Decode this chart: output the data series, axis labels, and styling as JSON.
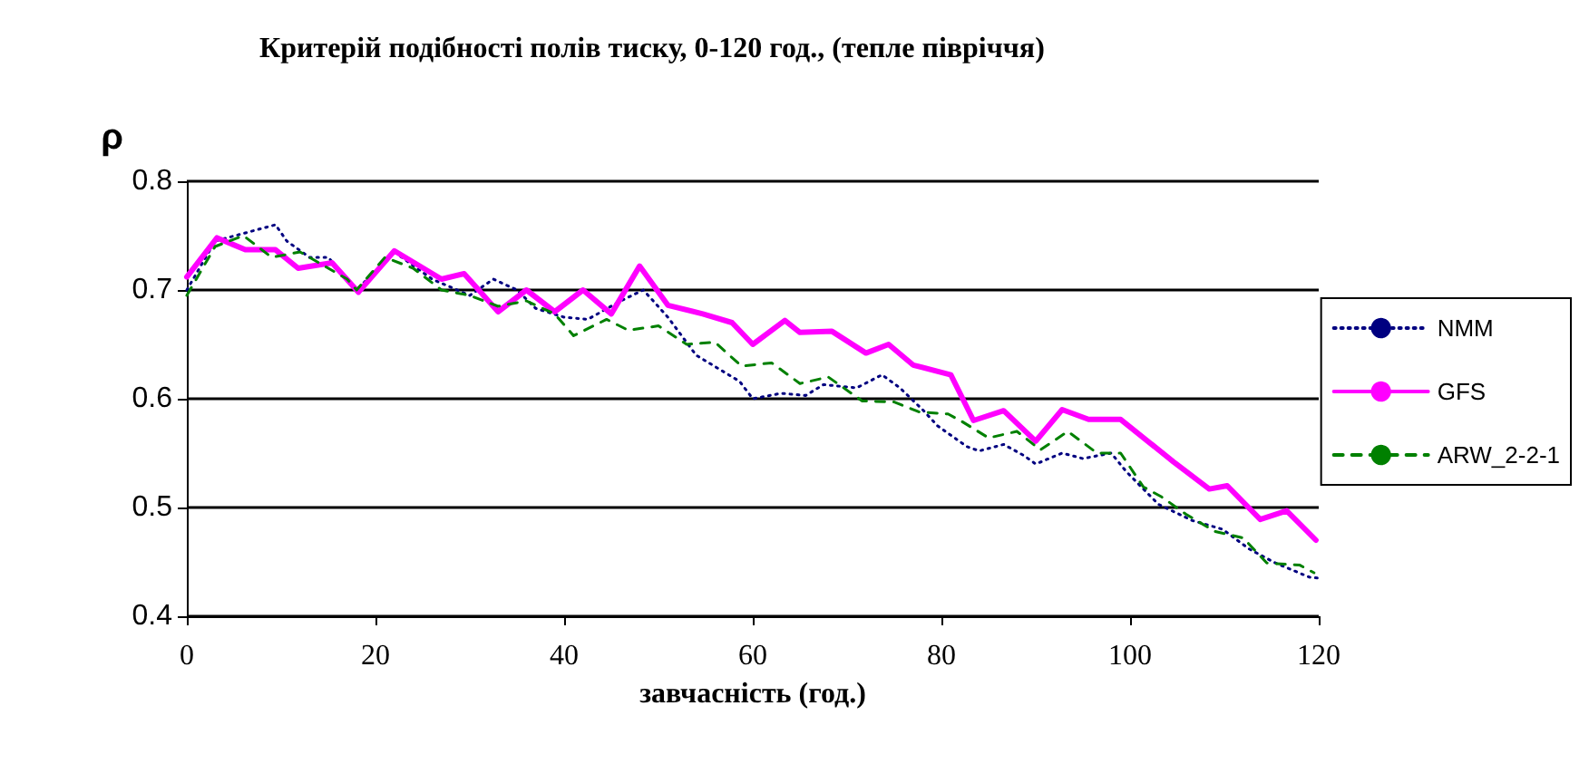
{
  "chart_data": {
    "type": "line",
    "title": "Критерій подібності полів тиску, 0-120 год., (тепле півріччя)",
    "ylabel": "ρ",
    "xlabel": "завчасність (год.)",
    "xlim": [
      0,
      120
    ],
    "xticks": [
      0,
      20,
      40,
      60,
      80,
      100,
      120
    ],
    "ylim": [
      0.4,
      0.8
    ],
    "yticks": [
      0.4,
      0.5,
      0.6,
      0.7,
      0.8
    ],
    "grid": "y",
    "legend": "right",
    "marker": "none",
    "series": [
      {
        "name": "NMM",
        "color": "#000080",
        "line_style": "dotted",
        "x": [
          0,
          3,
          6,
          9.4,
          10.6,
          13,
          15,
          18,
          22,
          26,
          30,
          32.5,
          35,
          37,
          40,
          42.5,
          46,
          48.4,
          51,
          54,
          58.6,
          60,
          63,
          65.6,
          67.5,
          71,
          73.7,
          75.6,
          78,
          79.6,
          82.7,
          84,
          86.6,
          88.7,
          90,
          92.8,
          95,
          98,
          99.6,
          103,
          106.6,
          109.8,
          112.6,
          115.4,
          119,
          120
        ],
        "values": [
          0.7,
          0.745,
          0.752,
          0.76,
          0.745,
          0.73,
          0.73,
          0.7,
          0.735,
          0.71,
          0.695,
          0.71,
          0.7,
          0.683,
          0.675,
          0.673,
          0.69,
          0.7,
          0.675,
          0.64,
          0.616,
          0.6,
          0.605,
          0.603,
          0.613,
          0.61,
          0.622,
          0.61,
          0.59,
          0.575,
          0.556,
          0.552,
          0.558,
          0.548,
          0.54,
          0.55,
          0.545,
          0.55,
          0.533,
          0.503,
          0.488,
          0.48,
          0.462,
          0.449,
          0.436,
          0.435
        ]
      },
      {
        "name": "GFS",
        "color": "#ff00ff",
        "line_style": "solid",
        "x": [
          0,
          3.2,
          6.2,
          9.4,
          11.8,
          15.4,
          18.2,
          22,
          27,
          29.4,
          33,
          36,
          39,
          42,
          45,
          48,
          51,
          54.7,
          57.8,
          60,
          63.4,
          65,
          68.4,
          72,
          74.4,
          77,
          81,
          83.4,
          86.6,
          90,
          92.8,
          95.6,
          99,
          104.6,
          108.4,
          110.3,
          113.8,
          116.6,
          119.7
        ],
        "values": [
          0.712,
          0.748,
          0.737,
          0.737,
          0.72,
          0.725,
          0.698,
          0.736,
          0.71,
          0.715,
          0.68,
          0.7,
          0.68,
          0.7,
          0.678,
          0.722,
          0.686,
          0.678,
          0.67,
          0.65,
          0.672,
          0.661,
          0.662,
          0.642,
          0.65,
          0.631,
          0.622,
          0.58,
          0.589,
          0.561,
          0.59,
          0.581,
          0.581,
          0.542,
          0.517,
          0.52,
          0.489,
          0.497,
          0.47
        ]
      },
      {
        "name": "ARW_2-2-1",
        "color": "#008000",
        "line_style": "dashed",
        "x": [
          0,
          3,
          6,
          9,
          12,
          15,
          17,
          18,
          21,
          24,
          27,
          30,
          33,
          36,
          39,
          41,
          44.5,
          46.8,
          50,
          53,
          56,
          58.8,
          62,
          65,
          68,
          71.6,
          75,
          77.6,
          80.7,
          82,
          85,
          88,
          90.5,
          93.4,
          96.5,
          99,
          101.4,
          103.3,
          105.9,
          109,
          112,
          114.5,
          118,
          119.5
        ],
        "values": [
          0.695,
          0.74,
          0.75,
          0.73,
          0.735,
          0.72,
          0.71,
          0.7,
          0.73,
          0.72,
          0.7,
          0.695,
          0.685,
          0.69,
          0.678,
          0.658,
          0.673,
          0.663,
          0.667,
          0.65,
          0.652,
          0.63,
          0.633,
          0.614,
          0.62,
          0.598,
          0.597,
          0.588,
          0.586,
          0.58,
          0.564,
          0.57,
          0.553,
          0.57,
          0.55,
          0.55,
          0.519,
          0.51,
          0.494,
          0.478,
          0.472,
          0.449,
          0.447,
          0.44
        ]
      }
    ]
  }
}
